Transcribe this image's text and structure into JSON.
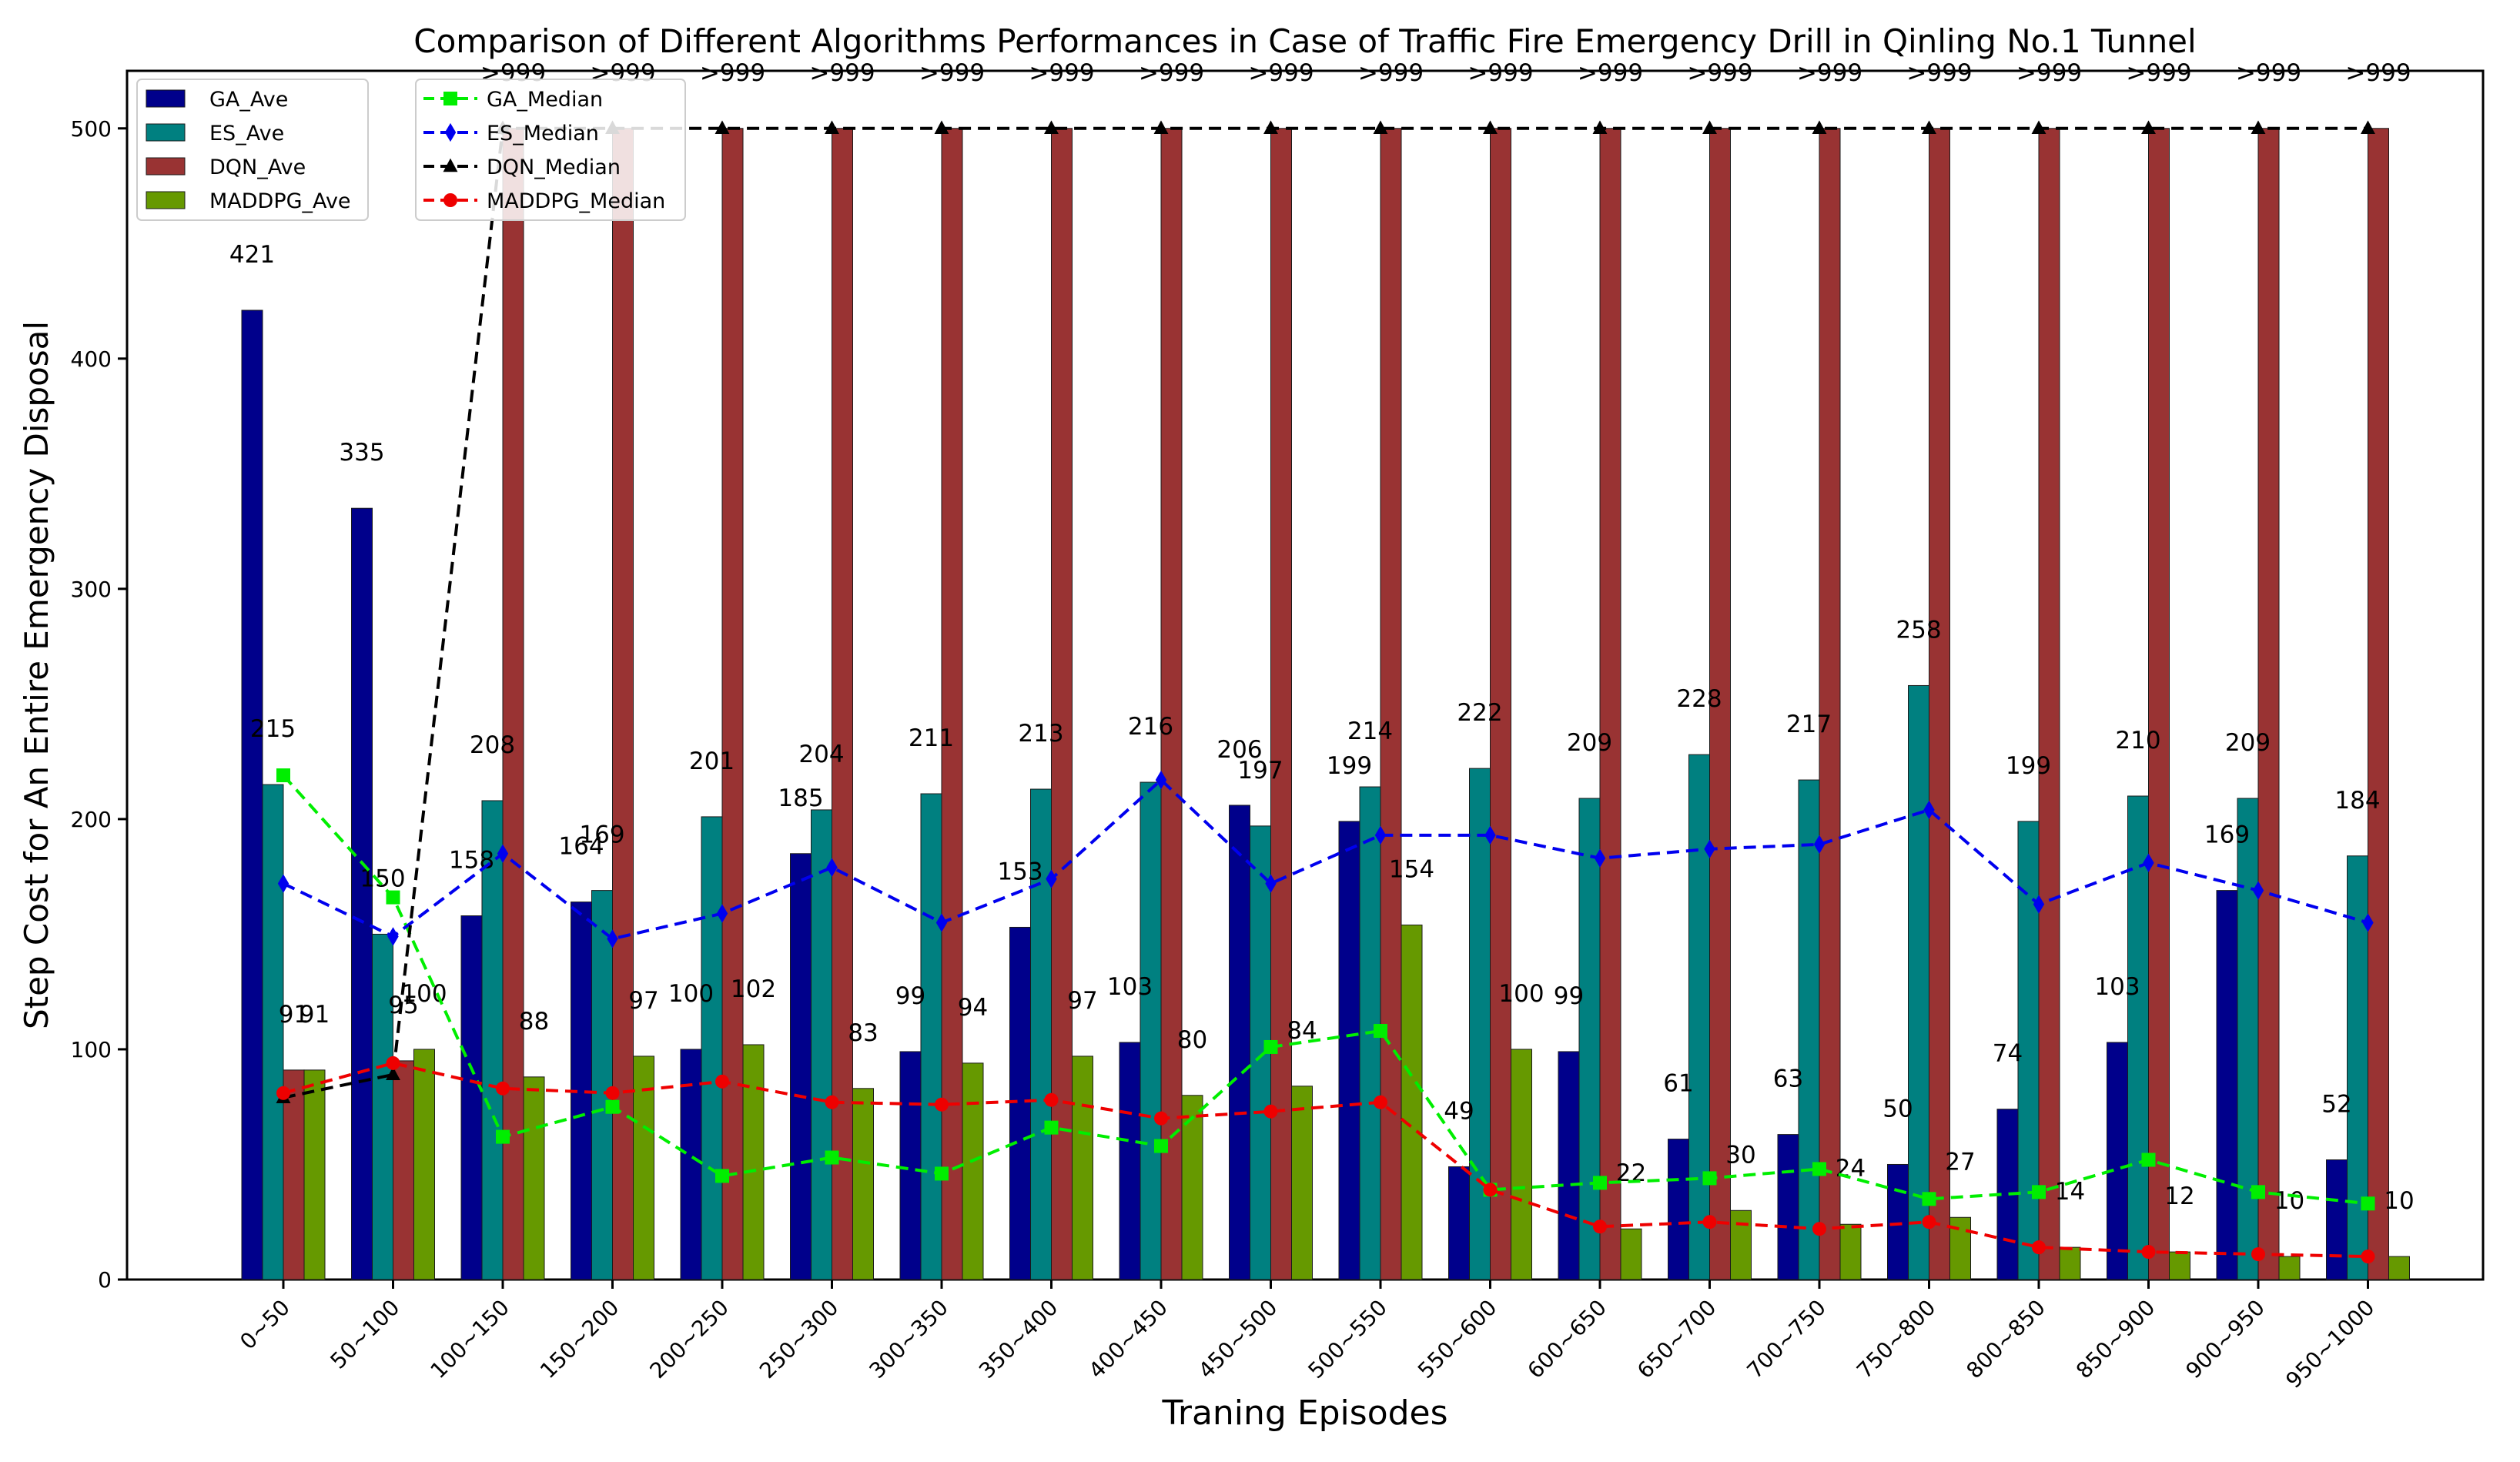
{
  "chart_data": {
    "type": "bar",
    "title": "Comparison of Different Algorithms Performances in Case of Traffic Fire Emergency Drill in Qinling No.1 Tunnel",
    "xlabel": "Traning Episodes",
    "ylabel": "Step Cost for An Entire Emergency Disposal",
    "ylim": [
      0,
      525
    ],
    "yticks": [
      0,
      100,
      200,
      300,
      400,
      500
    ],
    "grid": false,
    "categories": [
      "0~50",
      "50~100",
      "100~150",
      "150~200",
      "200~250",
      "250~300",
      "300~350",
      "350~400",
      "400~450",
      "450~500",
      "500~550",
      "550~600",
      "600~650",
      "650~700",
      "700~750",
      "750~800",
      "800~850",
      "850~900",
      "900~950",
      "950~1000"
    ],
    "bar_series": [
      {
        "name": "GA_Ave",
        "color": "#00008b",
        "values": [
          421,
          335,
          158,
          164,
          100,
          185,
          99,
          153,
          103,
          206,
          199,
          49,
          99,
          61,
          63,
          50,
          74,
          103,
          169,
          52
        ],
        "labels": [
          "421",
          "335",
          "158",
          "164",
          "100",
          "185",
          "99",
          "153",
          "103",
          "206",
          "199",
          "49",
          "99",
          "61",
          "63",
          "50",
          "74",
          "103",
          "169",
          "52"
        ]
      },
      {
        "name": "ES_Ave",
        "color": "#008080",
        "values": [
          215,
          150,
          208,
          169,
          201,
          204,
          211,
          213,
          216,
          197,
          214,
          222,
          209,
          228,
          217,
          258,
          199,
          210,
          209,
          184
        ],
        "labels": [
          "215",
          "150",
          "208",
          "169",
          "201",
          "204",
          "211",
          "213",
          "216",
          "197",
          "214",
          "222",
          "209",
          "228",
          "217",
          "258",
          "199",
          "210",
          "209",
          "184"
        ]
      },
      {
        "name": "DQN_Ave",
        "color": "#993333",
        "values": [
          91,
          95,
          500,
          500,
          500,
          500,
          500,
          500,
          500,
          500,
          500,
          500,
          500,
          500,
          500,
          500,
          500,
          500,
          500,
          500
        ],
        "labels": [
          "91",
          "95",
          ">999",
          ">999",
          ">999",
          ">999",
          ">999",
          ">999",
          ">999",
          ">999",
          ">999",
          ">999",
          ">999",
          ">999",
          ">999",
          ">999",
          ">999",
          ">999",
          ">999",
          ">999"
        ]
      },
      {
        "name": "MADDPG_Ave",
        "color": "#669900",
        "values": [
          91,
          100,
          88,
          97,
          102,
          83,
          94,
          97,
          80,
          84,
          154,
          100,
          22,
          30,
          24,
          27,
          14,
          12,
          10,
          10
        ],
        "labels": [
          "91",
          "100",
          "88",
          "97",
          "102",
          "83",
          "94",
          "97",
          "80",
          "84",
          "154",
          "100",
          "22",
          "30",
          "24",
          "27",
          "14",
          "12",
          "10",
          "10"
        ]
      }
    ],
    "line_series": [
      {
        "name": "GA_Median",
        "color": "#00ee00",
        "marker": "square",
        "values": [
          219,
          166,
          62,
          75,
          45,
          53,
          46,
          66,
          58,
          101,
          108,
          39,
          42,
          44,
          48,
          35,
          38,
          52,
          38,
          33
        ]
      },
      {
        "name": "ES_Median",
        "color": "#0000ee",
        "marker": "diamond",
        "values": [
          172,
          149,
          185,
          148,
          159,
          179,
          155,
          174,
          217,
          172,
          193,
          193,
          183,
          187,
          189,
          204,
          163,
          181,
          169,
          155
        ]
      },
      {
        "name": "DQN_Median",
        "color": "#000000",
        "marker": "triangle",
        "values": [
          79,
          89,
          500,
          500,
          500,
          500,
          500,
          500,
          500,
          500,
          500,
          500,
          500,
          500,
          500,
          500,
          500,
          500,
          500,
          500
        ]
      },
      {
        "name": "MADDPG_Median",
        "color": "#ee0000",
        "marker": "circle",
        "values": [
          81,
          94,
          83,
          81,
          86,
          77,
          76,
          78,
          70,
          73,
          77,
          39,
          23,
          25,
          22,
          25,
          14,
          12,
          11,
          10
        ]
      }
    ],
    "legend_placement": "top-left"
  }
}
